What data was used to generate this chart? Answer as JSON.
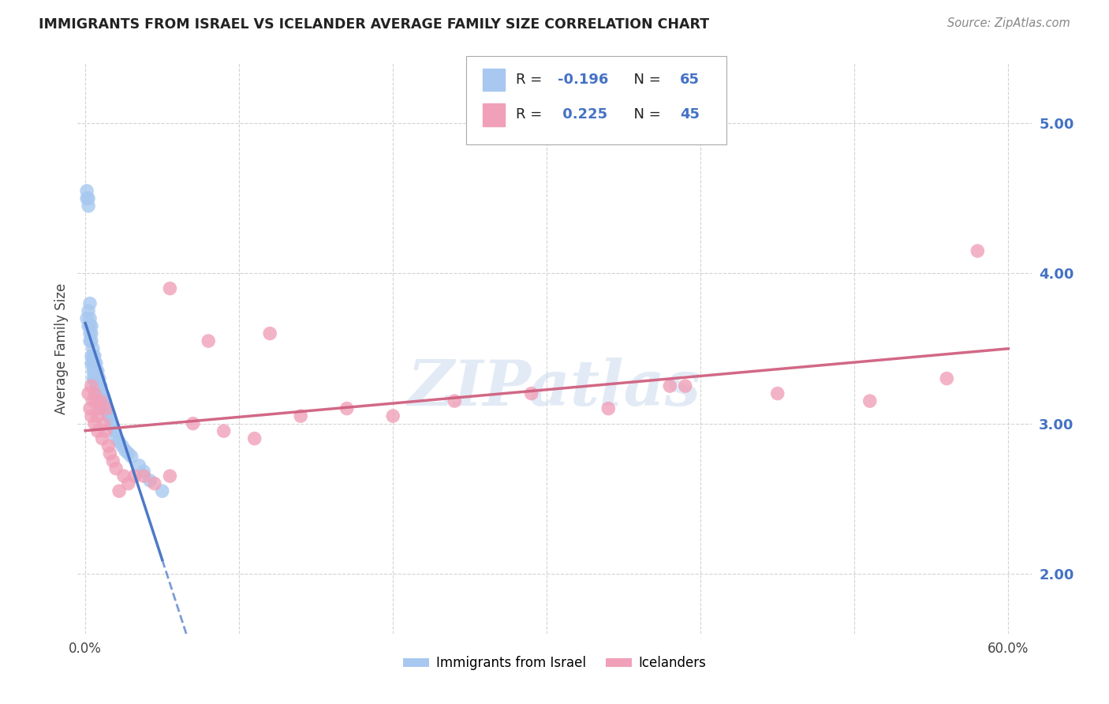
{
  "title": "IMMIGRANTS FROM ISRAEL VS ICELANDER AVERAGE FAMILY SIZE CORRELATION CHART",
  "source": "Source: ZipAtlas.com",
  "ylabel": "Average Family Size",
  "xlim": [
    0.0,
    0.6
  ],
  "ylim": [
    1.6,
    5.4
  ],
  "yticks": [
    2.0,
    3.0,
    4.0,
    5.0
  ],
  "xticks": [
    0.0,
    0.1,
    0.2,
    0.3,
    0.4,
    0.5,
    0.6
  ],
  "xtick_labels": [
    "0.0%",
    "",
    "",
    "",
    "",
    "",
    "60.0%"
  ],
  "legend1_R": "-0.196",
  "legend1_N": "65",
  "legend2_R": "0.225",
  "legend2_N": "45",
  "color_israel": "#a8c8f0",
  "color_icelander": "#f0a0b8",
  "trend_israel_color": "#4472c4",
  "trend_icelander_color": "#d06080",
  "watermark": "ZIPatlas",
  "israel_x": [
    0.001,
    0.001,
    0.001,
    0.002,
    0.002,
    0.002,
    0.002,
    0.003,
    0.003,
    0.003,
    0.003,
    0.003,
    0.004,
    0.004,
    0.004,
    0.004,
    0.004,
    0.005,
    0.005,
    0.005,
    0.005,
    0.005,
    0.006,
    0.006,
    0.006,
    0.006,
    0.007,
    0.007,
    0.007,
    0.007,
    0.008,
    0.008,
    0.008,
    0.008,
    0.009,
    0.009,
    0.009,
    0.01,
    0.01,
    0.01,
    0.01,
    0.011,
    0.011,
    0.011,
    0.012,
    0.012,
    0.013,
    0.013,
    0.014,
    0.015,
    0.015,
    0.016,
    0.017,
    0.018,
    0.019,
    0.02,
    0.022,
    0.024,
    0.026,
    0.028,
    0.03,
    0.035,
    0.038,
    0.042,
    0.05
  ],
  "israel_y": [
    4.55,
    4.5,
    3.7,
    4.5,
    4.45,
    3.75,
    3.65,
    3.8,
    3.7,
    3.65,
    3.6,
    3.55,
    3.65,
    3.6,
    3.55,
    3.45,
    3.4,
    3.5,
    3.45,
    3.4,
    3.35,
    3.3,
    3.45,
    3.4,
    3.35,
    3.3,
    3.4,
    3.35,
    3.3,
    3.25,
    3.35,
    3.3,
    3.25,
    3.2,
    3.3,
    3.25,
    3.2,
    3.25,
    3.2,
    3.18,
    3.15,
    3.2,
    3.15,
    3.1,
    3.18,
    3.12,
    3.15,
    3.1,
    3.1,
    3.08,
    3.05,
    3.05,
    3.0,
    2.98,
    2.95,
    2.9,
    2.88,
    2.85,
    2.82,
    2.8,
    2.78,
    2.72,
    2.68,
    2.62,
    2.55
  ],
  "icelander_x": [
    0.002,
    0.003,
    0.004,
    0.004,
    0.005,
    0.006,
    0.006,
    0.007,
    0.008,
    0.008,
    0.009,
    0.01,
    0.011,
    0.012,
    0.013,
    0.014,
    0.015,
    0.016,
    0.018,
    0.02,
    0.022,
    0.025,
    0.028,
    0.032,
    0.038,
    0.045,
    0.055,
    0.07,
    0.09,
    0.11,
    0.14,
    0.17,
    0.2,
    0.24,
    0.29,
    0.34,
    0.39,
    0.45,
    0.51,
    0.56,
    0.055,
    0.08,
    0.12,
    0.38,
    0.58
  ],
  "icelander_y": [
    3.2,
    3.1,
    3.25,
    3.05,
    3.15,
    3.2,
    3.0,
    3.15,
    3.05,
    2.95,
    3.1,
    3.15,
    2.9,
    3.0,
    2.95,
    3.1,
    2.85,
    2.8,
    2.75,
    2.7,
    2.55,
    2.65,
    2.6,
    2.65,
    2.65,
    2.6,
    2.65,
    3.0,
    2.95,
    2.9,
    3.05,
    3.1,
    3.05,
    3.15,
    3.2,
    3.1,
    3.25,
    3.2,
    3.15,
    3.3,
    3.9,
    3.55,
    3.6,
    3.25,
    4.15
  ]
}
